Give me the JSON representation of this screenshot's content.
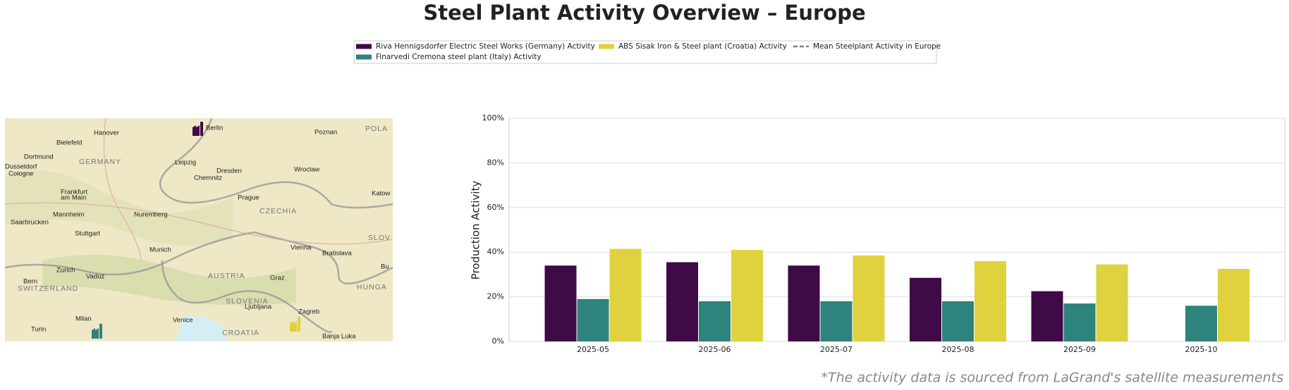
{
  "header": {
    "title": "Steel Plant Activity Overview – Europe"
  },
  "map": {
    "labels": [
      "Hanover",
      "Berlin",
      "Poznan",
      "POLA",
      "Bielefeld",
      "Dortmund",
      "GERMANY",
      "Leipzig",
      "Dresden",
      "Wroclaw",
      "Dusseldorf",
      "Cologne",
      "Chemnitz",
      "Katow",
      "Frankfurt",
      "am Main",
      "Prague",
      "Mannheim",
      "Nuremberg",
      "CZECHIA",
      "Saarbrucken",
      "Stuttgart",
      "SLOV",
      "Munich",
      "Vienna",
      "Bratislava",
      "Zurich",
      "Vaduz",
      "AUSTRIA",
      "Graz",
      "Bu",
      "Bern",
      "SWITZERLAND",
      "HUNGA",
      "SLOVENIA",
      "Ljubljana",
      "Milan",
      "Zagreb",
      "Venice",
      "CROATIA",
      "Turin",
      "Banja Luka"
    ]
  },
  "chart_data": {
    "type": "bar",
    "categories": [
      "2025-05",
      "2025-06",
      "2025-07",
      "2025-08",
      "2025-09",
      "2025-10"
    ],
    "series": [
      {
        "name": "Riva Hennigsdorfer Electric Steel Works (Germany) Activity",
        "color": "#3f0a47",
        "values": [
          34,
          35.5,
          34,
          28.5,
          22.5,
          null
        ]
      },
      {
        "name": "Finarvedi Cremona steel plant (Italy) Activity",
        "color": "#2e837c",
        "values": [
          19,
          18,
          18,
          18,
          17,
          16
        ]
      },
      {
        "name": "ABS Sisak Iron & Steel plant (Croatia) Activity",
        "color": "#e0d23e",
        "values": [
          41.5,
          41,
          38.5,
          36,
          34.5,
          32.5
        ]
      },
      {
        "name": "Mean Steelplant Activity in Europe",
        "color": "#808080",
        "type": "line",
        "dash": "dashed",
        "values": [
          null,
          null,
          null,
          null,
          null,
          null
        ]
      }
    ],
    "y_label": "Production Activity",
    "ylim": [
      0,
      100
    ],
    "yticks": [
      {
        "value": 0,
        "label": "0%"
      },
      {
        "value": 20,
        "label": "20%"
      },
      {
        "value": 40,
        "label": "40%"
      },
      {
        "value": 60,
        "label": "60%"
      },
      {
        "value": 80,
        "label": "80%"
      },
      {
        "value": 100,
        "label": "100%"
      }
    ],
    "grid": true
  },
  "footnote": "*The activity data is sourced from LaGrand's satellite measurements"
}
